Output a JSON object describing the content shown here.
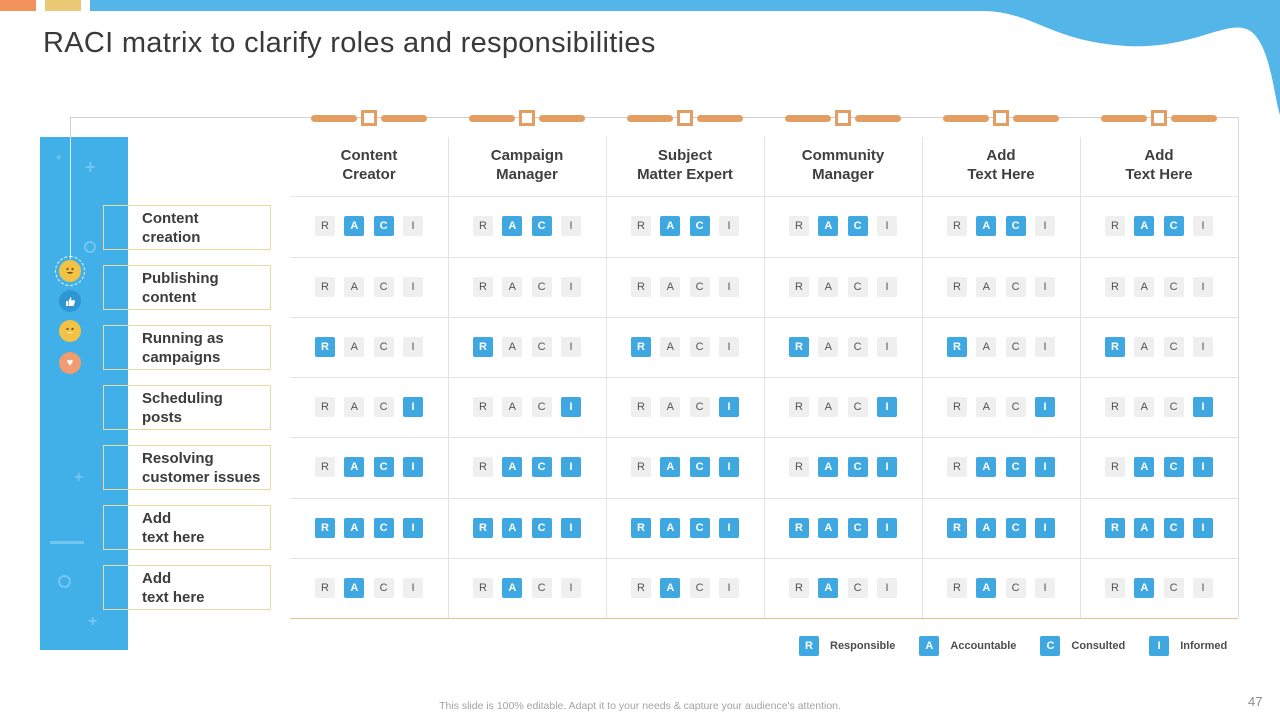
{
  "title": "RACI matrix to clarify roles and responsibilities",
  "page_number": "47",
  "footer_note": "This slide is 100% editable. Adapt it to your needs & capture your audience's attention.",
  "matrix": {
    "letters": [
      "R",
      "A",
      "C",
      "I"
    ],
    "columns": [
      {
        "line1": "Content",
        "line2": "Creator"
      },
      {
        "line1": "Campaign",
        "line2": "Manager"
      },
      {
        "line1": "Subject",
        "line2": "Matter Expert"
      },
      {
        "line1": "Community",
        "line2": "Manager"
      },
      {
        "line1": "Add",
        "line2": "Text Here"
      },
      {
        "line1": "Add",
        "line2": "Text Here"
      }
    ],
    "rows": [
      {
        "line1": "Content",
        "line2": "creation",
        "highlighted": [
          "A",
          "C"
        ]
      },
      {
        "line1": "Publishing",
        "line2": "content",
        "highlighted": []
      },
      {
        "line1": "Running as",
        "line2": "campaigns",
        "highlighted": [
          "R"
        ]
      },
      {
        "line1": "Scheduling",
        "line2": "posts",
        "highlighted": [
          "I"
        ]
      },
      {
        "line1": "Resolving",
        "line2": "customer issues",
        "highlighted": [
          "A",
          "C",
          "I"
        ]
      },
      {
        "line1": "Add",
        "line2": "text here",
        "highlighted": [
          "R",
          "A",
          "C",
          "I"
        ]
      },
      {
        "line1": "Add",
        "line2": "text here",
        "highlighted": [
          "A"
        ]
      }
    ]
  },
  "legend": [
    {
      "letter": "R",
      "label": "Responsible"
    },
    {
      "letter": "A",
      "label": "Accountable"
    },
    {
      "letter": "C",
      "label": "Consulted"
    },
    {
      "letter": "I",
      "label": "Informed"
    }
  ],
  "icons": [
    "laugh-emoji",
    "thumbs-up",
    "smiley",
    "heart"
  ],
  "colors": {
    "top_bar_orange": "#F2935C",
    "top_bar_yellow": "#EBC873",
    "top_wave_blue": "#53B5E8",
    "panel_blue": "#41B0E8",
    "chip_highlight_blue": "#3FA8E0",
    "chip_gray": "#EFEFEF",
    "slider_orange": "#E29E63",
    "label_box_border": "#E9D9A2",
    "table_bottom_line": "#E7BE8F",
    "heart_icon_bg": "#F09B70",
    "emoji_icon_bg": "#F2C245",
    "thumb_icon_bg": "#2E96D3"
  }
}
